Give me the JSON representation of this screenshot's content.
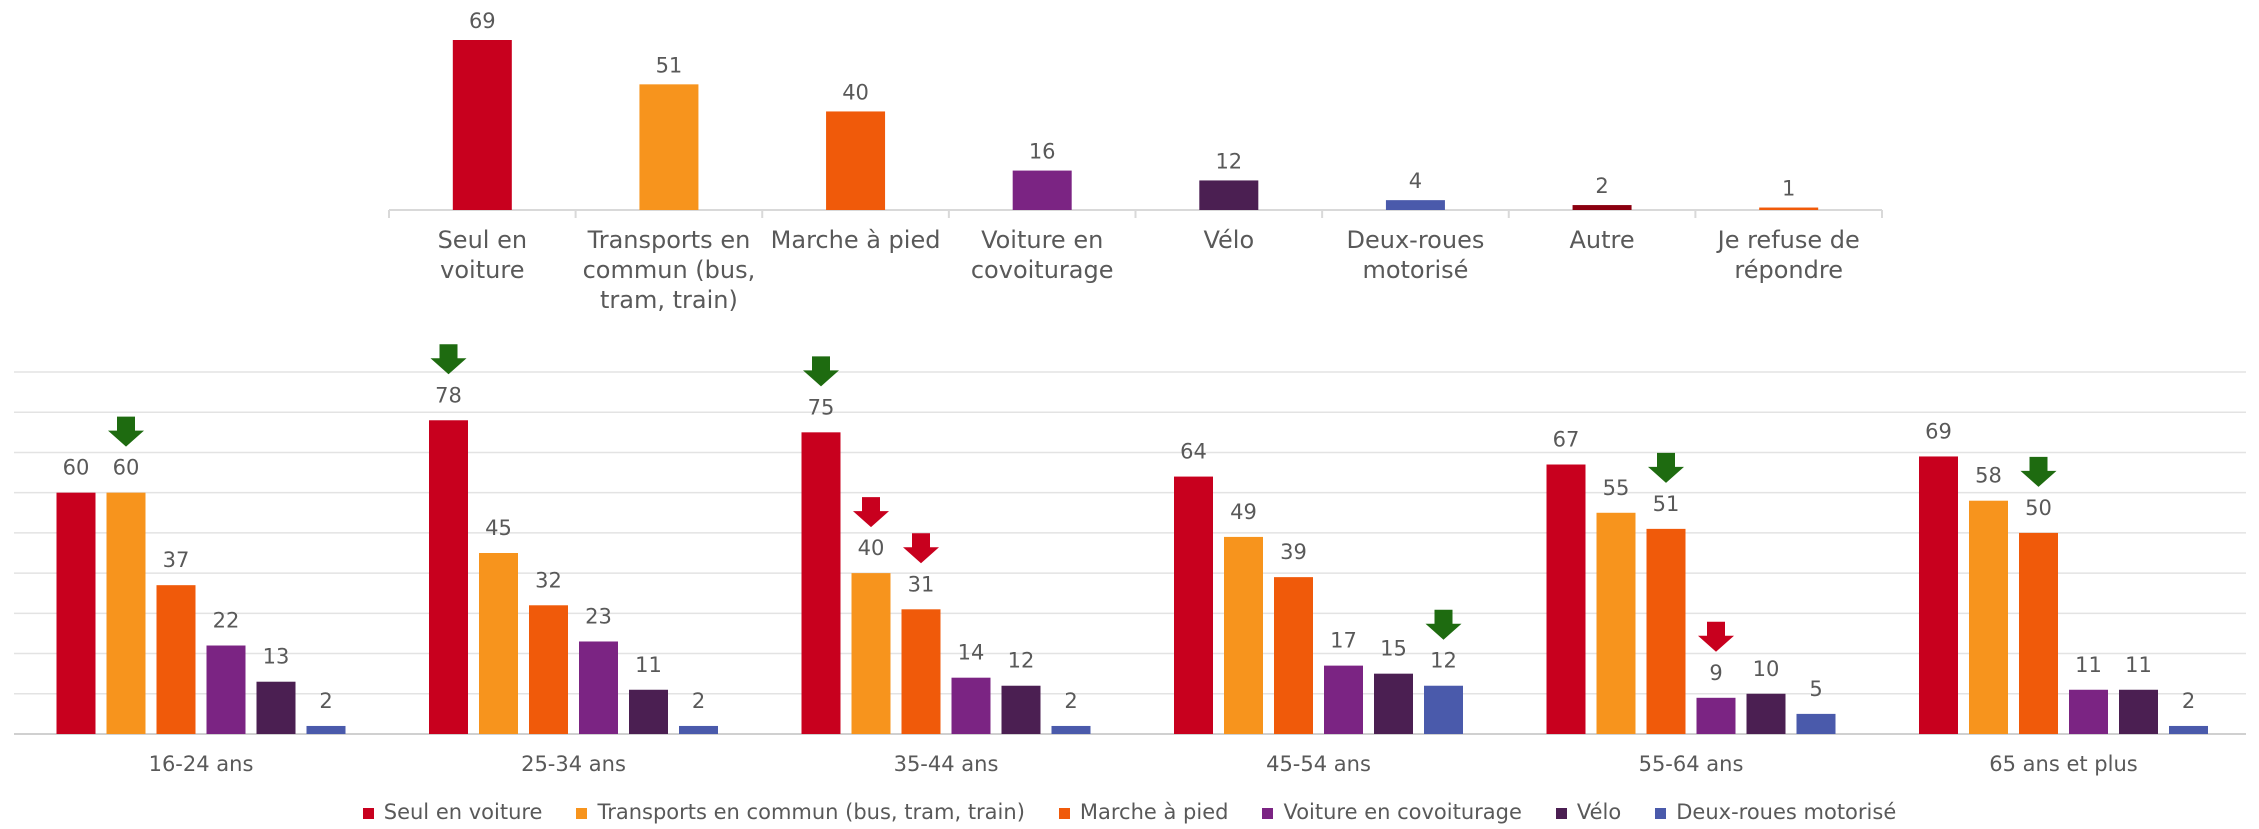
{
  "chart_data": [
    {
      "type": "bar",
      "categories": [
        "Seul en voiture",
        "Transports en commun (bus, tram, train)",
        "Marche à pied",
        "Voiture en covoiturage",
        "Vélo",
        "Deux-roues motorisé",
        "Autre",
        "Je refuse de répondre"
      ],
      "values": [
        69,
        51,
        40,
        16,
        12,
        4,
        2,
        1
      ],
      "colors": [
        "#c8001e",
        "#f7941d",
        "#f05a0a",
        "#7b2483",
        "#4b1f52",
        "#4a5aab",
        "#8b0010",
        "#f05a0a"
      ]
    },
    {
      "type": "grouped_bar",
      "categories": [
        "16-24 ans",
        "25-34 ans",
        "35-44 ans",
        "45-54 ans",
        "55-64 ans",
        "65 ans et plus"
      ],
      "series": [
        {
          "name": "Seul en voiture",
          "color": "#c8001e",
          "values": [
            60,
            78,
            75,
            64,
            67,
            69
          ]
        },
        {
          "name": "Transports en commun (bus, tram, train)",
          "color": "#f7941d",
          "values": [
            60,
            45,
            40,
            49,
            55,
            58
          ]
        },
        {
          "name": "Marche à pied",
          "color": "#f05a0a",
          "values": [
            37,
            32,
            31,
            39,
            51,
            50
          ]
        },
        {
          "name": "Voiture en covoiturage",
          "color": "#7b2483",
          "values": [
            22,
            23,
            14,
            17,
            9,
            11
          ]
        },
        {
          "name": "Vélo",
          "color": "#4b1f52",
          "values": [
            13,
            11,
            12,
            15,
            10,
            11
          ]
        },
        {
          "name": "Deux-roues motorisé",
          "color": "#4a5aab",
          "values": [
            2,
            2,
            2,
            12,
            5,
            2
          ]
        }
      ],
      "ylim": [
        0,
        90
      ],
      "yticks": [
        0,
        10,
        20,
        30,
        40,
        50,
        60,
        70,
        80,
        90
      ],
      "grid": true,
      "legend": "bottom"
    }
  ]
}
